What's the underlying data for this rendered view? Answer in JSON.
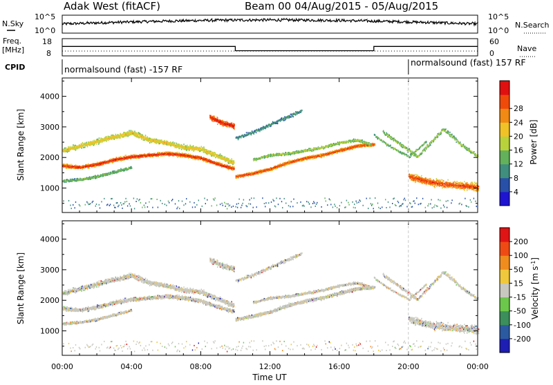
{
  "header": {
    "station": "Adak West (fitACF)",
    "beam_dates": "Beam 00 04/Aug/2015 - 05/Aug/2015"
  },
  "top_panels": {
    "nsky_label": "N.Sky",
    "nsearch_label": "N.Search",
    "noise_ticks_left": [
      "10^5",
      "10^0"
    ],
    "noise_ticks_right": [
      "10^5",
      "10^0"
    ],
    "freq_label_line1": "Freq.",
    "freq_label_line2": "[MHz]",
    "freq_ticks": [
      "18",
      "8"
    ],
    "nave_label": "Nave",
    "nave_ticks": [
      "60",
      "0"
    ],
    "cpid_label": "CPID",
    "cpid_left": "normalsound (fast) -157 RF",
    "cpid_right": "normalsound (fast) 157 RF",
    "freq_series": {
      "hours": [
        0,
        10,
        10,
        18,
        18,
        24
      ],
      "mhz": [
        13.5,
        13.5,
        11.0,
        11.0,
        13.5,
        13.5
      ]
    },
    "cpid_change_hour": 20
  },
  "chart_data": [
    {
      "type": "heatmap",
      "name": "power",
      "ylabel": "Slant Range [km]",
      "ylim": [
        200,
        4600
      ],
      "y_ticks": [
        "1000",
        "2000",
        "3000",
        "4000"
      ],
      "y_tick_values": [
        1000,
        2000,
        3000,
        4000
      ],
      "colorbar_label": "Power [dB]",
      "colorbar_ticks": [
        "4",
        "8",
        "12",
        "16",
        "20",
        "24",
        "28"
      ],
      "colorbar_values": [
        4,
        8,
        12,
        16,
        20,
        24,
        28
      ],
      "colorbar_colors": [
        "#1e14d2",
        "#2850a8",
        "#3f8e7e",
        "#63b15a",
        "#b8d23c",
        "#f0c228",
        "#f08a14",
        "#f04a0a",
        "#e01010"
      ],
      "colorbar_range": [
        0,
        32
      ]
    },
    {
      "type": "heatmap",
      "name": "velocity",
      "ylabel": "Slant Range [km]",
      "xlabel": "Time UT",
      "ylim": [
        200,
        4600
      ],
      "y_ticks": [
        "1000",
        "2000",
        "3000",
        "4000"
      ],
      "y_tick_values": [
        1000,
        2000,
        3000,
        4000
      ],
      "colorbar_label_main": "Velocity [m s",
      "colorbar_label_sup": "-1",
      "colorbar_label_end": "]",
      "colorbar_ticks": [
        "200",
        "100",
        "50",
        "15",
        "-15",
        "-50",
        "-100",
        "-200"
      ],
      "colorbar_colors": [
        "#1e1eb4",
        "#2c5aa0",
        "#3c8e5a",
        "#6cc84a",
        "#c8c8c0",
        "#f0c83c",
        "#f08c1e",
        "#f04a14",
        "#e01414"
      ]
    }
  ],
  "x_axis": {
    "ticks": [
      "00:00",
      "04:00",
      "08:00",
      "12:00",
      "16:00",
      "20:00",
      "00:00"
    ],
    "tick_hours": [
      0,
      4,
      8,
      12,
      16,
      20,
      24
    ],
    "xlim_hours": [
      0,
      24
    ]
  }
}
